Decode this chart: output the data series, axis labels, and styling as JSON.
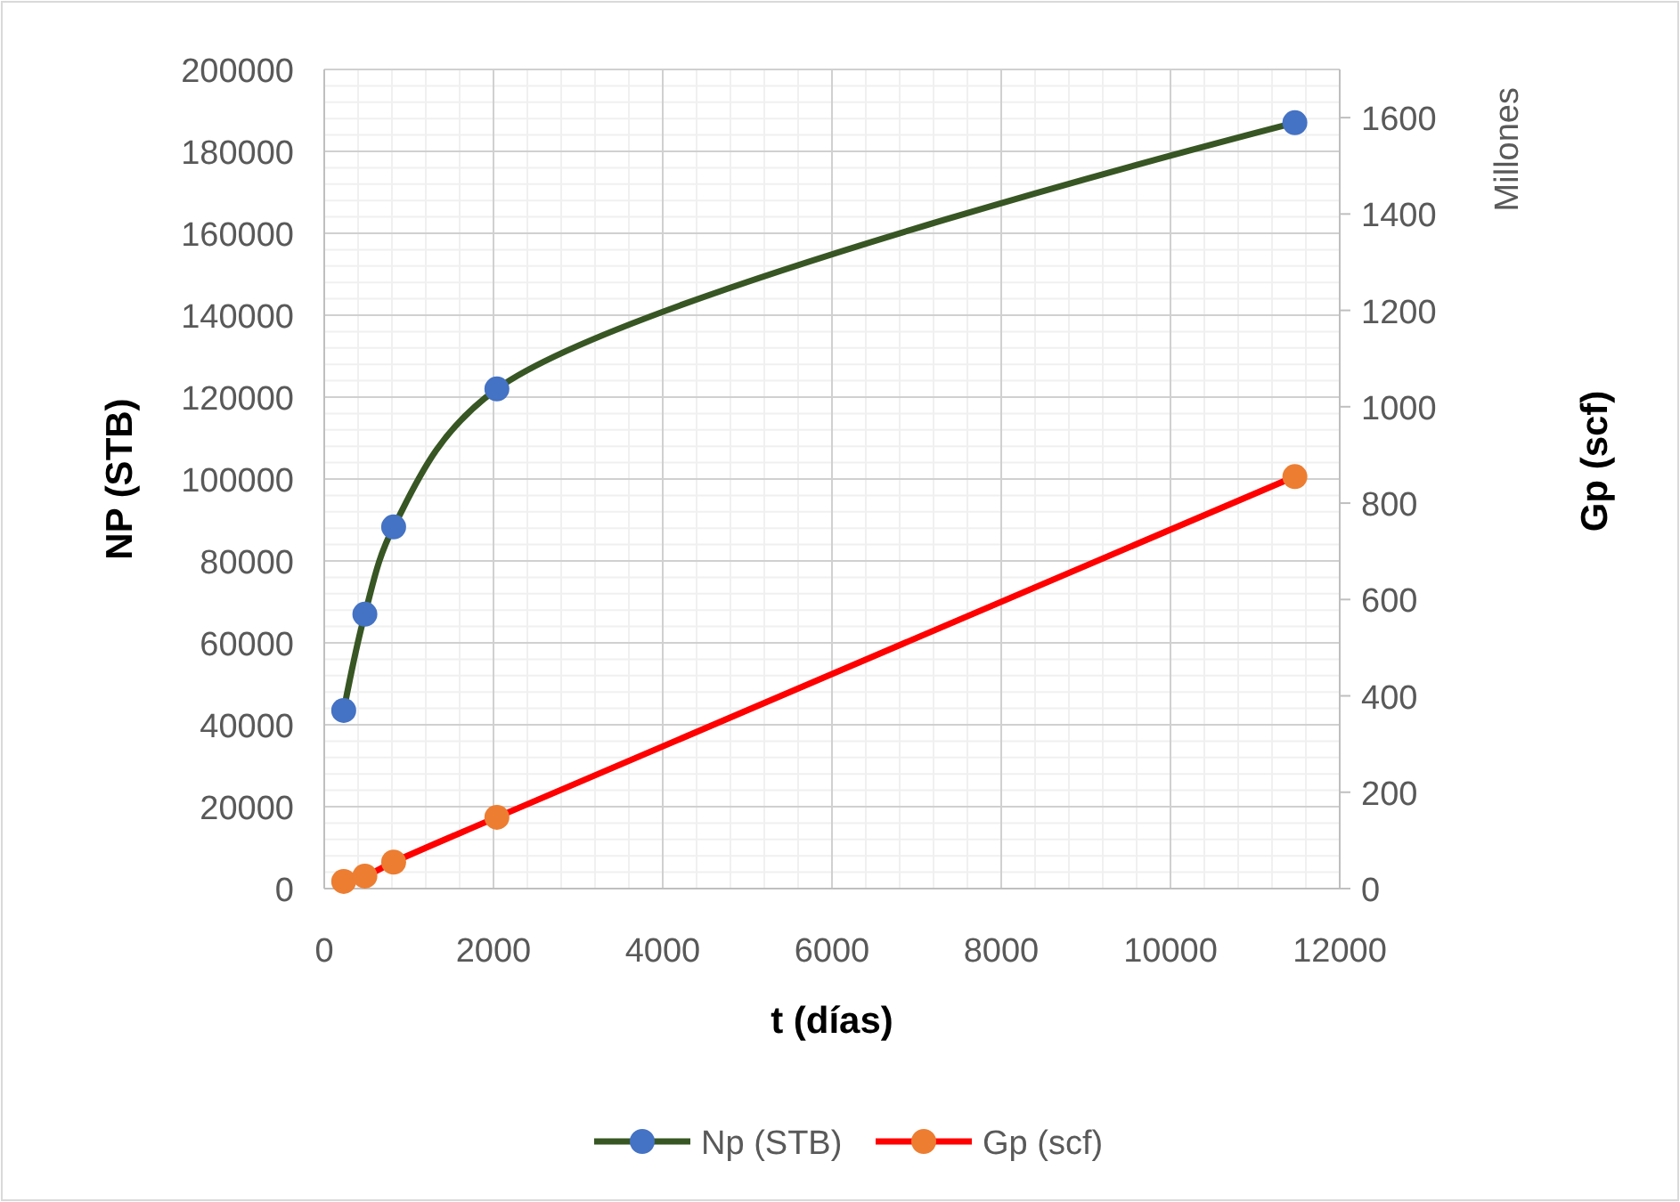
{
  "chart_data": {
    "type": "line",
    "xlabel": "t (días)",
    "ylabel": "NP (STB)",
    "y2label": "Gp (scf)",
    "annotations": [
      "Millones"
    ],
    "xlim": [
      0,
      12000
    ],
    "xticks": [
      0,
      2000,
      4000,
      6000,
      8000,
      10000,
      12000
    ],
    "ylim": [
      0,
      200000
    ],
    "yticks": [
      0,
      20000,
      40000,
      60000,
      80000,
      100000,
      120000,
      140000,
      160000,
      180000,
      200000
    ],
    "y2lim": [
      0,
      1700
    ],
    "y2ticks": [
      0,
      200,
      400,
      600,
      800,
      1000,
      1200,
      1400,
      1600
    ],
    "grid": true,
    "legend": "bottom",
    "marker": "circle",
    "line_style": "solid",
    "series": [
      {
        "name": "Np (STB)",
        "color": "#375623",
        "colors": [
          "#4472c4",
          "#4472c4",
          "#4472c4",
          "#4472c4",
          "#4472c4"
        ],
        "x": [
          230,
          480,
          820,
          2040,
          11470
        ],
        "values": [
          43500,
          67000,
          88300,
          122000,
          187000
        ]
      },
      {
        "name": "Gp (scf)",
        "color": "#ff0000",
        "colors": [
          "#ed7d31",
          "#ed7d31",
          "#ed7d31",
          "#ed7d31",
          "#ed7d31"
        ],
        "axis": "y2",
        "x": [
          230,
          480,
          820,
          2040,
          11470
        ],
        "values": [
          15,
          26,
          55,
          148,
          855
        ]
      }
    ]
  }
}
